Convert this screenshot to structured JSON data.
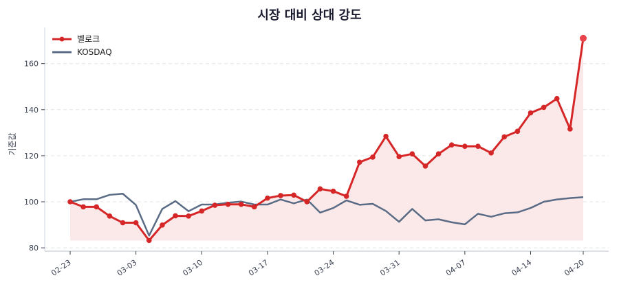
{
  "chart_data": {
    "type": "line",
    "title": "시장 대비 상대 강도",
    "xlabel": "",
    "ylabel": "기준값",
    "ylim": [
      79,
      175
    ],
    "yticks": [
      80,
      100,
      120,
      140,
      160
    ],
    "xtick_labels": [
      "02-23",
      "03-03",
      "03-10",
      "03-17",
      "03-24",
      "03-31",
      "04-07",
      "04-14",
      "04-20"
    ],
    "xtick_indices": [
      0,
      5,
      10,
      15,
      20,
      25,
      30,
      35,
      39
    ],
    "grid": true,
    "legend_position": "upper left",
    "x_count": 40,
    "series": [
      {
        "name": "벨로크",
        "color": "#d62728",
        "marker": "circle",
        "fill_to_min": true,
        "fill_color": "#fbe9e9",
        "values": [
          100.0,
          97.8,
          97.8,
          93.8,
          90.9,
          90.9,
          83.2,
          89.9,
          93.9,
          93.8,
          96.0,
          98.5,
          98.9,
          98.9,
          97.8,
          101.6,
          102.7,
          102.9,
          100.0,
          105.6,
          104.6,
          102.4,
          117.2,
          119.4,
          128.4,
          119.6,
          120.8,
          115.5,
          120.8,
          124.7,
          124.1,
          124.1,
          121.2,
          128.2,
          130.6,
          138.6,
          141.0,
          144.8,
          131.6,
          171.0
        ]
      },
      {
        "name": "KOSDAQ",
        "color": "#5a6b85",
        "marker": "none",
        "values": [
          100.0,
          101.1,
          101.1,
          103.0,
          103.5,
          98.6,
          85.3,
          96.9,
          100.3,
          95.9,
          98.8,
          98.8,
          99.6,
          100.1,
          98.8,
          98.8,
          101.0,
          99.3,
          101.0,
          95.3,
          97.3,
          100.6,
          98.7,
          99.1,
          96.0,
          91.3,
          96.9,
          91.9,
          92.4,
          91.1,
          90.2,
          94.8,
          93.5,
          95.0,
          95.4,
          97.3,
          100.0,
          101.0,
          101.6,
          102.0
        ]
      }
    ]
  }
}
